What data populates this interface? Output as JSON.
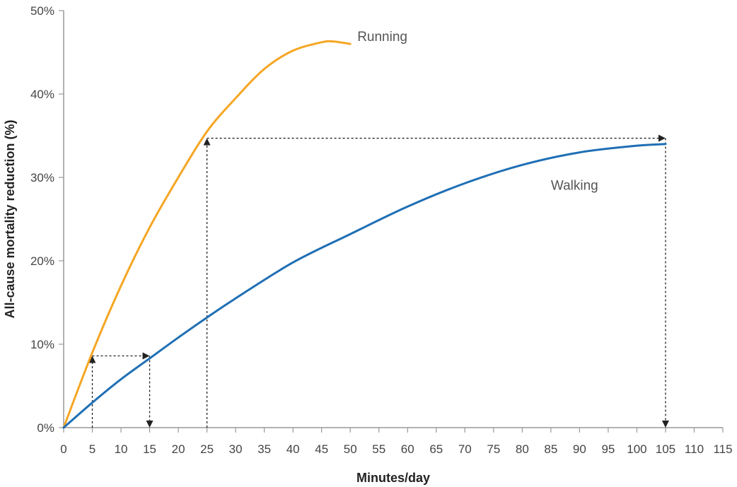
{
  "chart_data": {
    "type": "line",
    "title": "",
    "xlabel": "Minutes/day",
    "ylabel": "All-cause mortality reduction (%)",
    "xlim": [
      0,
      115
    ],
    "ylim": [
      0,
      50
    ],
    "x_ticks": [
      "0",
      "5",
      "10",
      "15",
      "20",
      "25",
      "30",
      "35",
      "40",
      "45",
      "50",
      "55",
      "60",
      "65",
      "70",
      "75",
      "80",
      "85",
      "90",
      "95",
      "100",
      "105",
      "110",
      "115"
    ],
    "y_ticks": [
      "0%",
      "10%",
      "20%",
      "30%",
      "40%",
      "50%"
    ],
    "grid": false,
    "series": [
      {
        "name": "Running",
        "color": "#F5A623",
        "points": [
          [
            0,
            0
          ],
          [
            5,
            9
          ],
          [
            10,
            17
          ],
          [
            15,
            24
          ],
          [
            20,
            30
          ],
          [
            25,
            35.5
          ],
          [
            30,
            39.5
          ],
          [
            35,
            43
          ],
          [
            40,
            45.2
          ],
          [
            45,
            46.2
          ],
          [
            47,
            46.3
          ],
          [
            50,
            46
          ]
        ]
      },
      {
        "name": "Walking",
        "color": "#1F6FB5",
        "points": [
          [
            0,
            0
          ],
          [
            5,
            3
          ],
          [
            10,
            5.8
          ],
          [
            15,
            8.3
          ],
          [
            20,
            10.8
          ],
          [
            25,
            13.2
          ],
          [
            30,
            15.5
          ],
          [
            40,
            19.8
          ],
          [
            50,
            23.2
          ],
          [
            60,
            26.5
          ],
          [
            70,
            29.3
          ],
          [
            80,
            31.5
          ],
          [
            90,
            33
          ],
          [
            100,
            33.8
          ],
          [
            105,
            34
          ]
        ]
      }
    ],
    "annotations": [
      {
        "type": "equivalence",
        "from_x": 5,
        "to_x": 15,
        "level_y": 8.6,
        "color": "#222"
      },
      {
        "type": "equivalence",
        "from_x": 25,
        "to_x": 105,
        "level_y": 34.7,
        "color": "#222"
      }
    ]
  }
}
